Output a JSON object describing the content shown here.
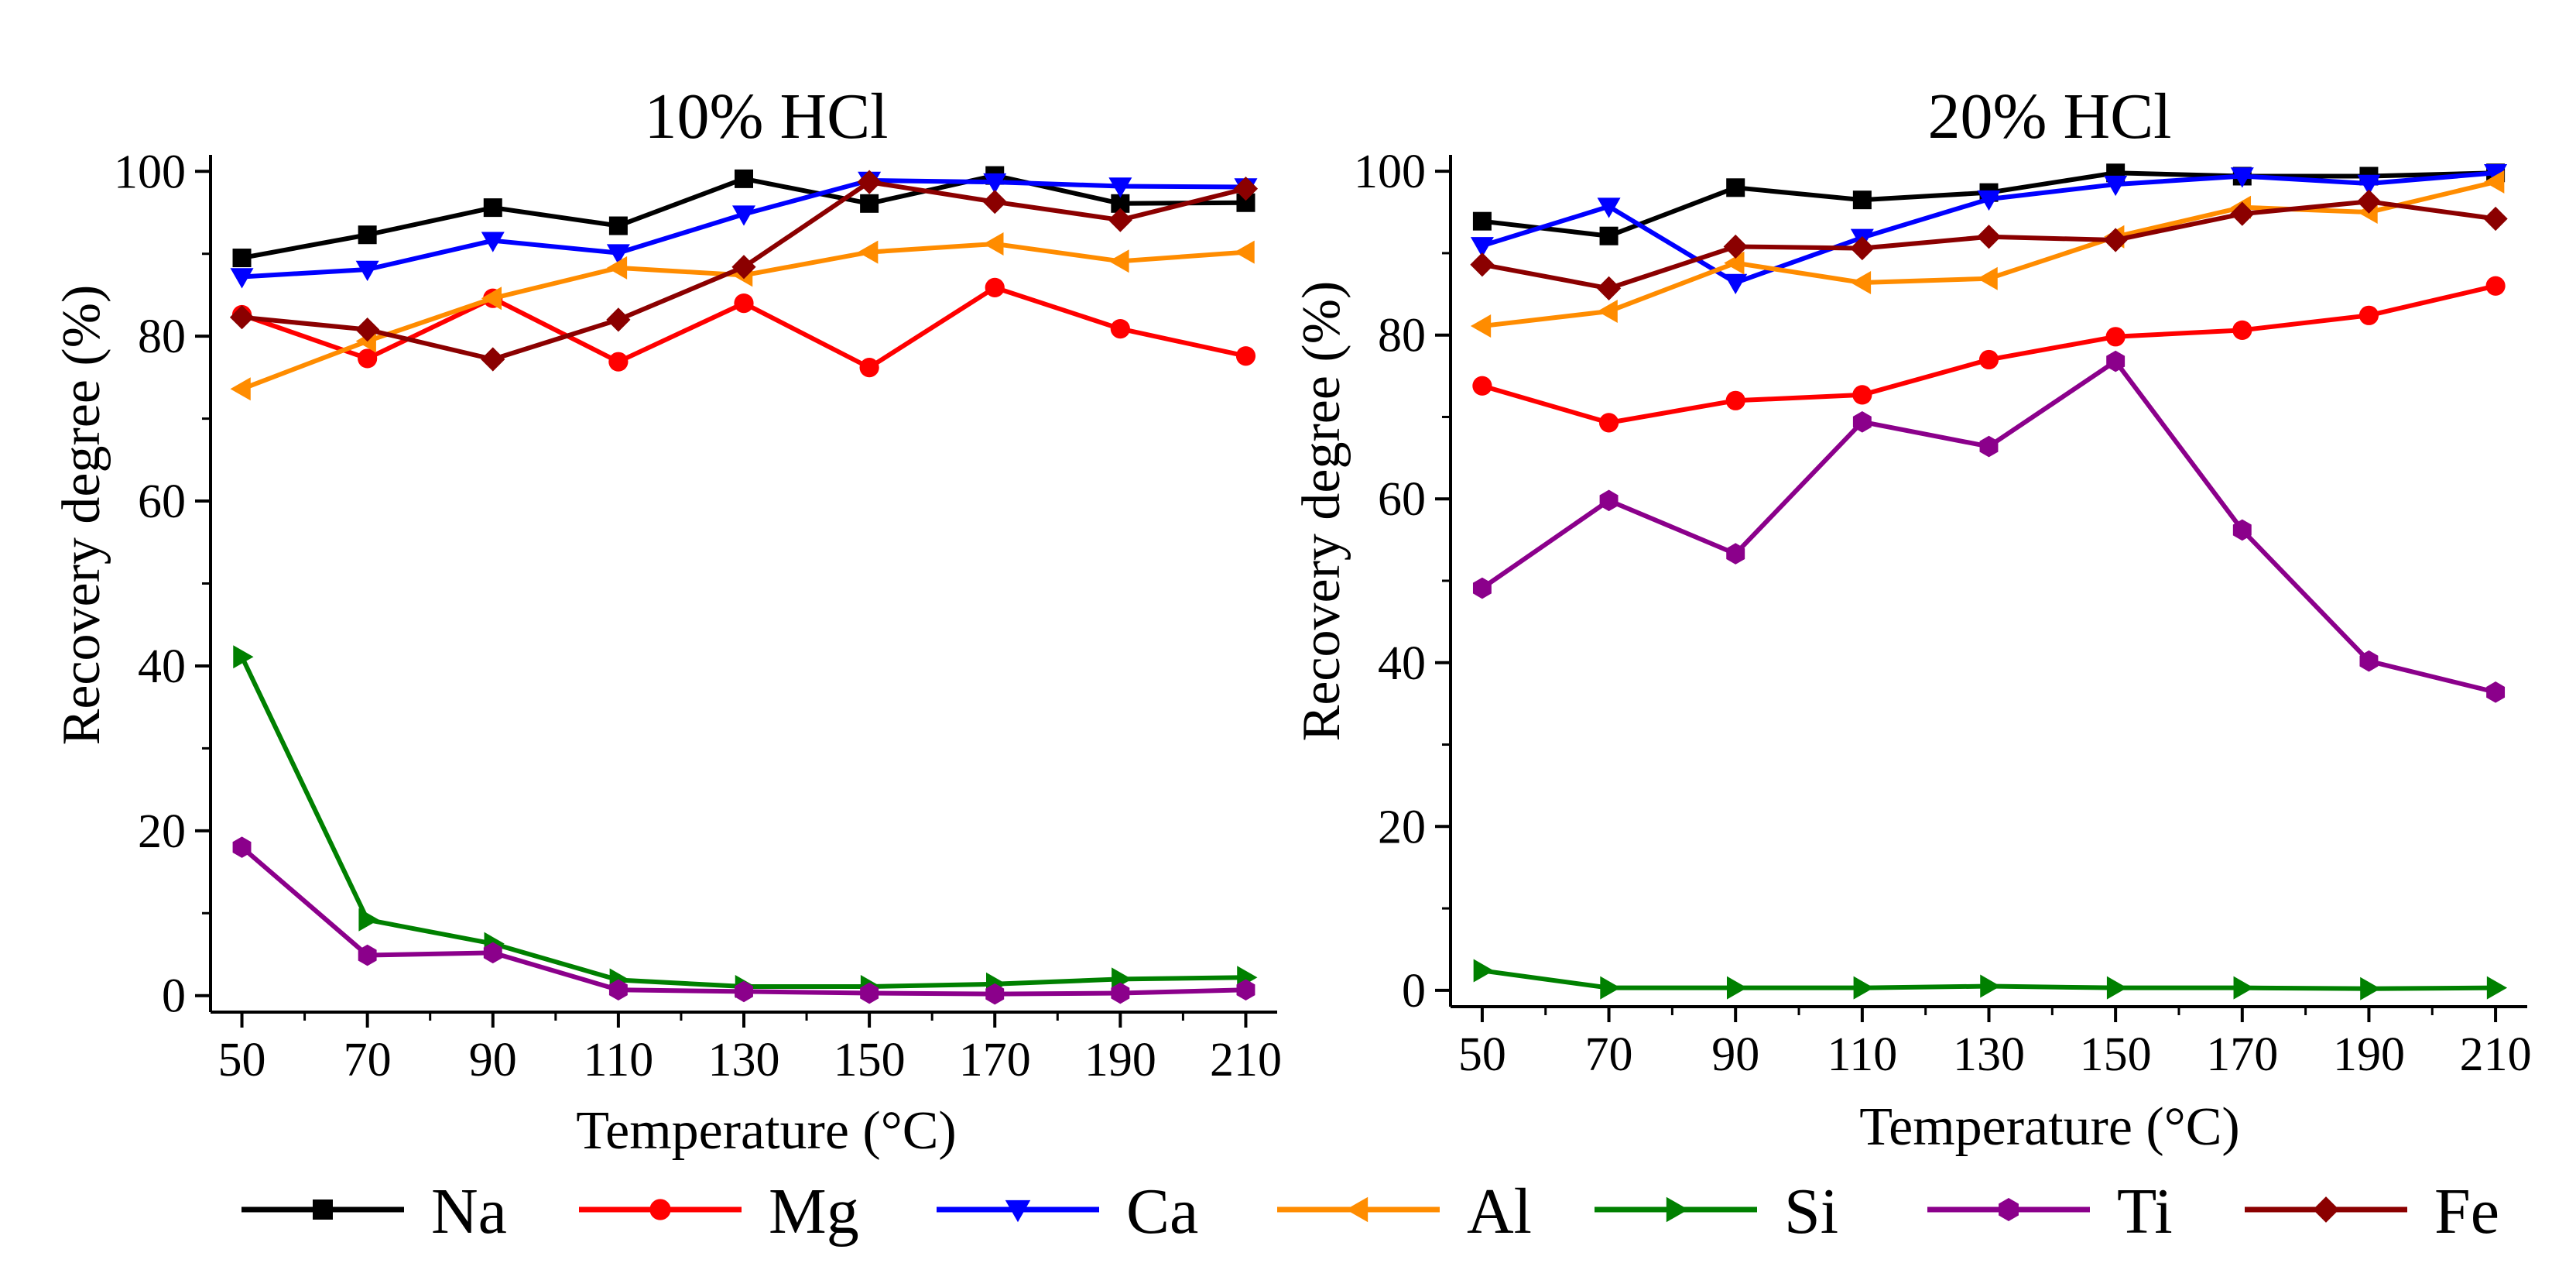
{
  "chart_data": [
    {
      "type": "line",
      "title": "10% HCl",
      "xlabel": "Temperature (°C)",
      "ylabel": "Recovery degree (%)",
      "x": [
        50,
        70,
        90,
        110,
        130,
        150,
        170,
        190,
        210
      ],
      "xticks": [
        "50",
        "70",
        "90",
        "110",
        "130",
        "150",
        "170",
        "190",
        "210"
      ],
      "yticks": [
        "0",
        "20",
        "40",
        "60",
        "80",
        "100"
      ],
      "xlim": [
        45,
        215
      ],
      "ylim": [
        -2,
        102
      ],
      "grid": false,
      "series": [
        {
          "name": "Na",
          "color": "#000000",
          "marker": "square",
          "values": [
            89.5,
            92.3,
            95.6,
            93.4,
            99.1,
            96.1,
            99.5,
            96.1,
            96.2
          ]
        },
        {
          "name": "Mg",
          "color": "#ff0000",
          "marker": "circle",
          "values": [
            82.6,
            77.3,
            84.6,
            76.9,
            84.0,
            76.2,
            85.9,
            80.9,
            77.6
          ]
        },
        {
          "name": "Ca",
          "color": "#0000ff",
          "marker": "triangle-down",
          "values": [
            87.2,
            88.1,
            91.6,
            90.1,
            94.8,
            98.9,
            98.7,
            98.2,
            98.1
          ]
        },
        {
          "name": "Al",
          "color": "#ff8c00",
          "marker": "triangle-left",
          "values": [
            73.6,
            79.4,
            84.6,
            88.3,
            87.4,
            90.2,
            91.2,
            89.1,
            90.2
          ]
        },
        {
          "name": "Si",
          "color": "#008000",
          "marker": "triangle-right",
          "values": [
            41.1,
            9.2,
            6.3,
            1.9,
            1.1,
            1.1,
            1.4,
            2.0,
            2.2
          ]
        },
        {
          "name": "Ti",
          "color": "#8b008b",
          "marker": "hexagon",
          "values": [
            18.0,
            4.9,
            5.2,
            0.7,
            0.5,
            0.3,
            0.2,
            0.3,
            0.7
          ]
        },
        {
          "name": "Fe",
          "color": "#8b0000",
          "marker": "diamond",
          "values": [
            82.3,
            80.8,
            77.2,
            82.0,
            88.4,
            98.7,
            96.3,
            94.1,
            97.9
          ]
        }
      ]
    },
    {
      "type": "line",
      "title": "20% HCl",
      "xlabel": "Temperature (°C)",
      "ylabel": "Recovery degree (%)",
      "x": [
        50,
        70,
        90,
        110,
        130,
        150,
        170,
        190,
        210
      ],
      "xticks": [
        "50",
        "70",
        "90",
        "110",
        "130",
        "150",
        "170",
        "190",
        "210"
      ],
      "yticks": [
        "0",
        "20",
        "40",
        "60",
        "80",
        "100"
      ],
      "xlim": [
        45,
        215
      ],
      "ylim": [
        -2,
        102
      ],
      "grid": false,
      "series": [
        {
          "name": "Na",
          "color": "#000000",
          "marker": "square",
          "values": [
            93.9,
            92.1,
            98.0,
            96.5,
            97.4,
            99.8,
            99.4,
            99.4,
            99.8
          ]
        },
        {
          "name": "Mg",
          "color": "#ff0000",
          "marker": "circle",
          "values": [
            73.8,
            69.3,
            72.0,
            72.7,
            77.0,
            79.8,
            80.6,
            82.4,
            86.0
          ]
        },
        {
          "name": "Ca",
          "color": "#0000ff",
          "marker": "triangle-down",
          "values": [
            90.9,
            95.7,
            86.4,
            91.9,
            96.6,
            98.4,
            99.4,
            98.5,
            99.8
          ]
        },
        {
          "name": "Al",
          "color": "#ff8c00",
          "marker": "triangle-left",
          "values": [
            81.1,
            82.9,
            88.8,
            86.4,
            86.9,
            92.0,
            95.6,
            95.0,
            98.7
          ]
        },
        {
          "name": "Si",
          "color": "#008000",
          "marker": "triangle-right",
          "values": [
            2.4,
            0.3,
            0.3,
            0.3,
            0.5,
            0.3,
            0.3,
            0.2,
            0.3
          ]
        },
        {
          "name": "Ti",
          "color": "#8b008b",
          "marker": "hexagon",
          "values": [
            49.1,
            59.8,
            53.3,
            69.4,
            66.4,
            76.8,
            56.2,
            40.2,
            36.4
          ]
        },
        {
          "name": "Fe",
          "color": "#8b0000",
          "marker": "diamond",
          "values": [
            88.6,
            85.7,
            90.8,
            90.6,
            92.0,
            91.6,
            94.8,
            96.3,
            94.2
          ]
        }
      ]
    }
  ],
  "legend": {
    "position": "bottom",
    "entries": [
      {
        "name": "Na",
        "color": "#000000",
        "marker": "square"
      },
      {
        "name": "Mg",
        "color": "#ff0000",
        "marker": "circle"
      },
      {
        "name": "Ca",
        "color": "#0000ff",
        "marker": "triangle-down"
      },
      {
        "name": "Al",
        "color": "#ff8c00",
        "marker": "triangle-left"
      },
      {
        "name": "Si",
        "color": "#008000",
        "marker": "triangle-right"
      },
      {
        "name": "Ti",
        "color": "#8b008b",
        "marker": "hexagon"
      },
      {
        "name": "Fe",
        "color": "#8b0000",
        "marker": "diamond"
      }
    ]
  }
}
